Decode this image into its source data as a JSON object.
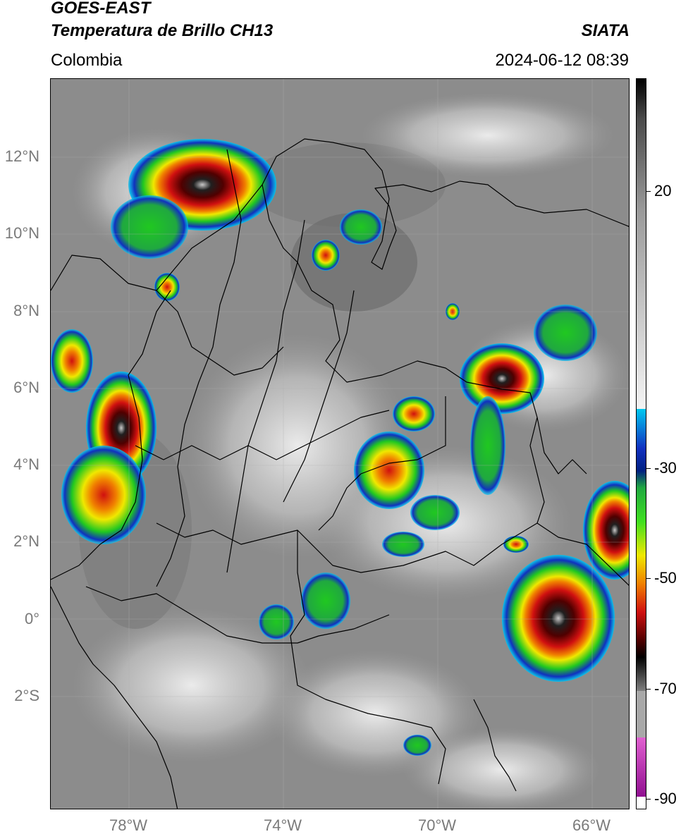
{
  "header": {
    "title_line1": "GOES-EAST",
    "title_line2": "Temperatura de Brillo CH13",
    "organization": "SIATA",
    "region": "Colombia",
    "datetime": "2024-06-12 08:39"
  },
  "map": {
    "lat_labels": [
      "12°N",
      "10°N",
      "8°N",
      "6°N",
      "4°N",
      "2°N",
      "0°",
      "2°S"
    ],
    "lon_labels": [
      "78°W",
      "74°W",
      "70°W",
      "66°W"
    ]
  },
  "colorbar": {
    "tick_labels": [
      "20",
      "-30",
      "-50",
      "-70",
      "-90"
    ],
    "colors": {
      "gray_warm": "#6e6e6e",
      "gray_cold": "#f2f2f2",
      "cyan": "#00c8f0",
      "blue": "#1030c0",
      "dark_blue": "#002080",
      "green": "#20c820",
      "yellow": "#f0e800",
      "orange": "#f08000",
      "red": "#d01010",
      "dark_red": "#500000",
      "black": "#000000",
      "pink": "#e060d0",
      "purple": "#901090"
    }
  }
}
